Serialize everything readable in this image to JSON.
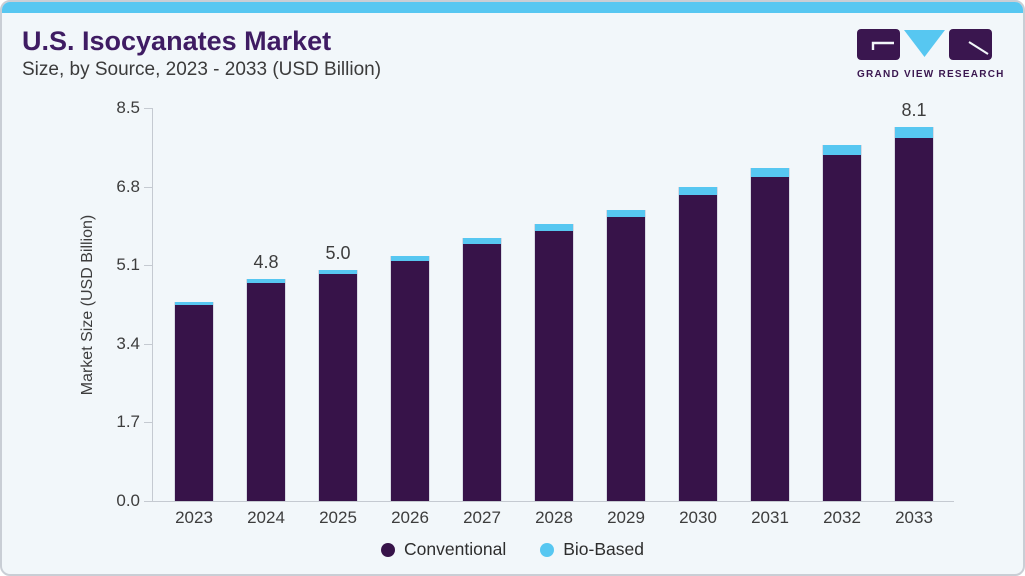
{
  "brand": {
    "name": "GRAND VIEW RESEARCH"
  },
  "colors": {
    "conventional": "#371349",
    "bio_based": "#57c7f1",
    "top_strip": "#57c7f1",
    "title": "#3f1c63",
    "text": "#3d3d3d",
    "axis": "#c5cad1",
    "card_background": "#f2f7fa",
    "card_border": "#c9ced5"
  },
  "chart_data": {
    "type": "bar",
    "stacked": true,
    "title": "U.S. Isocyanates Market",
    "subtitle": "Size, by Source, 2023 - 2033 (USD Billion)",
    "ylabel": "Market Size (USD Billion)",
    "xlabel": "",
    "categories": [
      "2023",
      "2024",
      "2025",
      "2026",
      "2027",
      "2028",
      "2029",
      "2030",
      "2031",
      "2032",
      "2033"
    ],
    "series": [
      {
        "name": "Conventional",
        "color": "#371349",
        "values": [
          4.23,
          4.72,
          4.91,
          5.19,
          5.56,
          5.85,
          6.14,
          6.63,
          7.01,
          7.48,
          7.86
        ]
      },
      {
        "name": "Bio-Based",
        "color": "#57c7f1",
        "values": [
          0.07,
          0.08,
          0.09,
          0.11,
          0.14,
          0.15,
          0.16,
          0.17,
          0.19,
          0.22,
          0.24
        ]
      }
    ],
    "totals": [
      4.3,
      4.8,
      5.0,
      5.3,
      5.7,
      6.0,
      6.3,
      6.8,
      7.2,
      7.7,
      8.1
    ],
    "bar_labels": [
      "",
      "4.8",
      "5.0",
      "",
      "",
      "",
      "",
      "",
      "",
      "",
      "8.1"
    ],
    "ytick_labels": [
      "0.0",
      "1.7",
      "3.4",
      "5.1",
      "6.8",
      "8.5"
    ],
    "ylim": [
      0,
      8.5
    ],
    "grid": false,
    "legend_position": "bottom"
  }
}
